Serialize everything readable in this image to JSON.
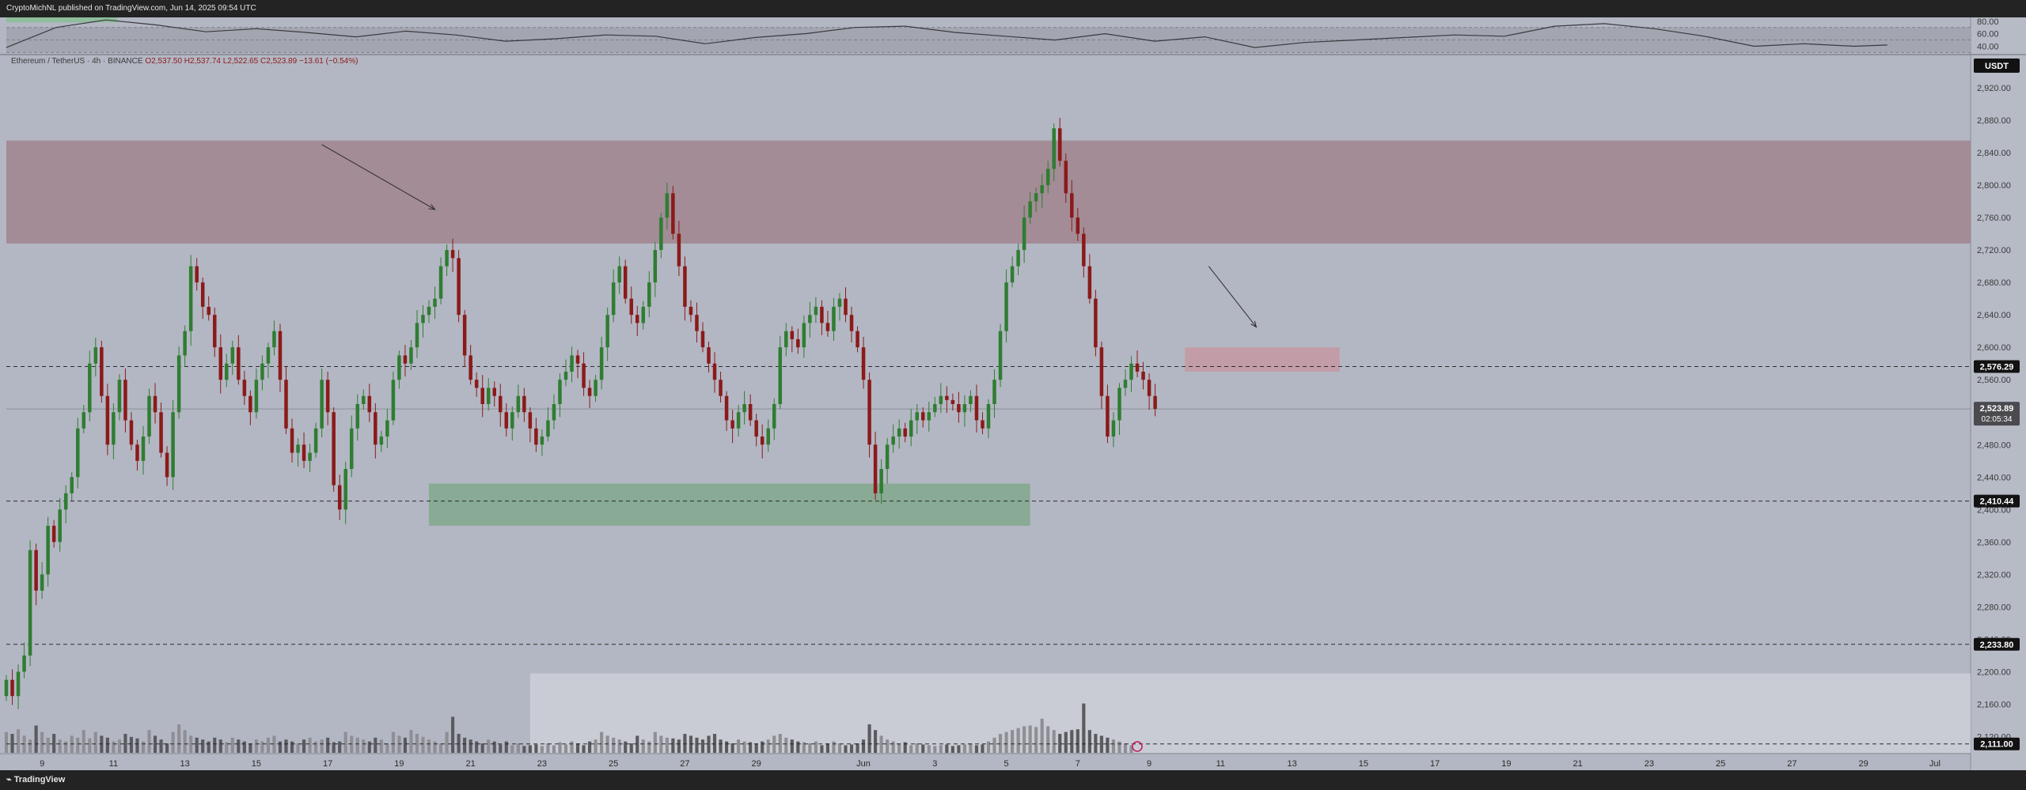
{
  "header": {
    "text": "CryptoMichNL published on TradingView.com, Jun 14, 2025 09:54 UTC"
  },
  "footer": {
    "brand": "TradingView"
  },
  "symbol_info": {
    "pair": "Ethereum / TetherUS · 4h · BINANCE",
    "open": "O2,537.50",
    "high": "H2,537.74",
    "low": "L2,522.65",
    "close": "C2,523.89",
    "change": "−13.61 (−0.54%)"
  },
  "currency_badge": "USDT",
  "colors": {
    "background": "#b3b7c3",
    "up": "#2f7d32",
    "down": "#8b1a1a",
    "supply_zone": "#a0858e",
    "demand_zone": "#84a88f",
    "small_zone": "#c39aa5",
    "volume_dark": "#5a5a5f",
    "volume_light": "#8e8e94"
  },
  "chart_data": [
    {
      "type": "line",
      "name": "RSI panel",
      "y_ticks": [
        "80.00",
        "60.00",
        "40.00"
      ],
      "ylim": [
        28,
        86
      ],
      "x_range": [
        0,
        236
      ],
      "x": [
        0,
        6,
        12,
        18,
        24,
        30,
        36,
        42,
        48,
        54,
        60,
        66,
        72,
        78,
        84,
        90,
        96,
        102,
        108,
        114,
        120,
        126,
        132,
        138,
        144,
        150,
        156,
        162,
        168,
        174,
        180,
        186,
        192,
        198,
        204,
        210,
        216,
        222,
        226
      ],
      "values": [
        38,
        70,
        82,
        74,
        63,
        68,
        62,
        55,
        64,
        58,
        48,
        52,
        58,
        56,
        44,
        54,
        60,
        70,
        72,
        62,
        56,
        50,
        60,
        48,
        55,
        38,
        46,
        50,
        54,
        58,
        56,
        72,
        76,
        68,
        56,
        40,
        44,
        40,
        42
      ]
    },
    {
      "type": "candlestick",
      "title": "Ethereum / TetherUS · 4h · BINANCE",
      "ylabel": "USDT",
      "ylim": [
        2100,
        2960
      ],
      "y_ticks": [
        "2,920.00",
        "2,880.00",
        "2,840.00",
        "2,800.00",
        "2,760.00",
        "2,720.00",
        "2,680.00",
        "2,640.00",
        "2,600.00",
        "2,560.00",
        "2,520.00",
        "2,480.00",
        "2,440.00",
        "2,400.00",
        "2,360.00",
        "2,320.00",
        "2,280.00",
        "2,240.00",
        "2,200.00",
        "2,160.00",
        "2,120.00"
      ],
      "x_ticks": [
        {
          "label": "9",
          "i": 6
        },
        {
          "label": "11",
          "i": 18
        },
        {
          "label": "13",
          "i": 30
        },
        {
          "label": "15",
          "i": 42
        },
        {
          "label": "17",
          "i": 54
        },
        {
          "label": "19",
          "i": 66
        },
        {
          "label": "21",
          "i": 78
        },
        {
          "label": "23",
          "i": 90
        },
        {
          "label": "25",
          "i": 102
        },
        {
          "label": "27",
          "i": 114
        },
        {
          "label": "29",
          "i": 126
        },
        {
          "label": "Jun",
          "i": 144
        },
        {
          "label": "3",
          "i": 156
        },
        {
          "label": "5",
          "i": 168
        },
        {
          "label": "7",
          "i": 180
        },
        {
          "label": "9",
          "i": 192
        },
        {
          "label": "11",
          "i": 204
        },
        {
          "label": "13",
          "i": 216
        },
        {
          "label": "15",
          "i": 228
        },
        {
          "label": "17",
          "i": 240
        },
        {
          "label": "19",
          "i": 252
        },
        {
          "label": "21",
          "i": 264
        },
        {
          "label": "23",
          "i": 276
        },
        {
          "label": "25",
          "i": 288
        },
        {
          "label": "27",
          "i": 300
        },
        {
          "label": "29",
          "i": 312
        },
        {
          "label": "Jul",
          "i": 324
        }
      ],
      "x_range": [
        0,
        330
      ],
      "closes": [
        2190,
        2170,
        2200,
        2220,
        2350,
        2300,
        2320,
        2380,
        2360,
        2400,
        2420,
        2440,
        2500,
        2520,
        2580,
        2600,
        2540,
        2480,
        2520,
        2560,
        2510,
        2480,
        2460,
        2490,
        2540,
        2520,
        2470,
        2440,
        2520,
        2590,
        2620,
        2700,
        2680,
        2650,
        2640,
        2600,
        2560,
        2580,
        2600,
        2560,
        2540,
        2520,
        2560,
        2580,
        2600,
        2620,
        2560,
        2500,
        2470,
        2480,
        2460,
        2470,
        2500,
        2560,
        2520,
        2430,
        2400,
        2450,
        2500,
        2530,
        2540,
        2520,
        2480,
        2490,
        2510,
        2560,
        2590,
        2580,
        2600,
        2630,
        2640,
        2650,
        2660,
        2700,
        2720,
        2710,
        2640,
        2590,
        2560,
        2550,
        2530,
        2550,
        2540,
        2520,
        2500,
        2520,
        2540,
        2520,
        2500,
        2480,
        2490,
        2510,
        2530,
        2560,
        2570,
        2590,
        2580,
        2550,
        2540,
        2560,
        2600,
        2640,
        2680,
        2700,
        2660,
        2640,
        2630,
        2650,
        2680,
        2720,
        2760,
        2790,
        2740,
        2700,
        2650,
        2640,
        2620,
        2600,
        2580,
        2560,
        2540,
        2510,
        2500,
        2520,
        2530,
        2510,
        2490,
        2480,
        2500,
        2530,
        2600,
        2620,
        2610,
        2600,
        2630,
        2640,
        2650,
        2630,
        2620,
        2650,
        2660,
        2640,
        2620,
        2600,
        2560,
        2480,
        2420,
        2450,
        2480,
        2490,
        2500,
        2490,
        2510,
        2520,
        2510,
        2520,
        2530,
        2540,
        2535,
        2530,
        2520,
        2530,
        2540,
        2510,
        2500,
        2530,
        2560,
        2620,
        2680,
        2700,
        2720,
        2760,
        2780,
        2790,
        2800,
        2820,
        2870,
        2830,
        2790,
        2760,
        2740,
        2700,
        2660,
        2600,
        2540,
        2490,
        2510,
        2550,
        2560,
        2580,
        2570,
        2560,
        2540,
        2524
      ],
      "last_price": "2,523.89",
      "countdown": "02:05:34",
      "levels": [
        {
          "price": 2576.29,
          "label": "2,576.29"
        },
        {
          "price": 2410.44,
          "label": "2,410.44"
        },
        {
          "price": 2233.8,
          "label": "2,233.80"
        },
        {
          "price": 2111.0,
          "label": "2,111.00"
        }
      ],
      "zones": [
        {
          "name": "supply",
          "from_i": 0,
          "to_i": 330,
          "low": 2728,
          "high": 2855
        },
        {
          "name": "demand",
          "from_i": 71,
          "to_i": 172,
          "low": 2380,
          "high": 2432
        },
        {
          "name": "target",
          "from_i": 198,
          "to_i": 224,
          "low": 2570,
          "high": 2600
        }
      ],
      "arrows": [
        {
          "from": [
            53,
            2850
          ],
          "to": [
            72,
            2770
          ]
        },
        {
          "from": [
            202,
            2700
          ],
          "to": [
            210,
            2625
          ]
        }
      ]
    },
    {
      "type": "bar",
      "name": "Volume",
      "values_note": "relative volume heights 0-1",
      "values": [
        0.55,
        0.5,
        0.62,
        0.45,
        0.35,
        0.72,
        0.55,
        0.4,
        0.5,
        0.35,
        0.3,
        0.45,
        0.4,
        0.6,
        0.38,
        0.55,
        0.45,
        0.4,
        0.3,
        0.35,
        0.5,
        0.42,
        0.38,
        0.3,
        0.6,
        0.45,
        0.35,
        0.25,
        0.55,
        0.75,
        0.6,
        0.45,
        0.4,
        0.35,
        0.3,
        0.4,
        0.35,
        0.28,
        0.4,
        0.35,
        0.3,
        0.25,
        0.35,
        0.3,
        0.4,
        0.45,
        0.3,
        0.35,
        0.3,
        0.25,
        0.35,
        0.4,
        0.3,
        0.35,
        0.4,
        0.28,
        0.3,
        0.55,
        0.45,
        0.4,
        0.35,
        0.3,
        0.4,
        0.35,
        0.25,
        0.55,
        0.45,
        0.4,
        0.6,
        0.5,
        0.42,
        0.35,
        0.3,
        0.25,
        0.55,
        0.95,
        0.5,
        0.4,
        0.35,
        0.3,
        0.25,
        0.35,
        0.3,
        0.22,
        0.3,
        0.2,
        0.25,
        0.18,
        0.2,
        0.22,
        0.18,
        0.25,
        0.2,
        0.28,
        0.22,
        0.3,
        0.25,
        0.2,
        0.3,
        0.35,
        0.55,
        0.45,
        0.4,
        0.35,
        0.3,
        0.25,
        0.45,
        0.35,
        0.3,
        0.55,
        0.45,
        0.4,
        0.38,
        0.35,
        0.5,
        0.45,
        0.4,
        0.35,
        0.45,
        0.5,
        0.35,
        0.3,
        0.25,
        0.35,
        0.3,
        0.28,
        0.25,
        0.3,
        0.35,
        0.45,
        0.5,
        0.4,
        0.35,
        0.3,
        0.28,
        0.25,
        0.3,
        0.2,
        0.25,
        0.3,
        0.25,
        0.2,
        0.22,
        0.25,
        0.35,
        0.75,
        0.6,
        0.45,
        0.35,
        0.3,
        0.25,
        0.28,
        0.2,
        0.25,
        0.22,
        0.2,
        0.18,
        0.2,
        0.22,
        0.18,
        0.2,
        0.22,
        0.25,
        0.2,
        0.22,
        0.3,
        0.4,
        0.5,
        0.55,
        0.6,
        0.65,
        0.7,
        0.72,
        0.68,
        0.9,
        0.7,
        0.6,
        0.5,
        0.55,
        0.6,
        0.62,
        1.3,
        0.6,
        0.5,
        0.45,
        0.4,
        0.35,
        0.3,
        0.25,
        0.2
      ]
    }
  ]
}
